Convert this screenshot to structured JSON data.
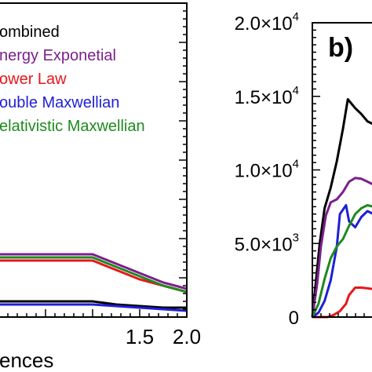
{
  "chart_data": [
    {
      "type": "line",
      "panel_label": "",
      "xlabel": "ences",
      "xlim": [
        0.0,
        2.0
      ],
      "x_ticks": [
        {
          "value": 1.5,
          "label": "1.5"
        },
        {
          "value": 2.0,
          "label": "2.0"
        }
      ],
      "legend": {
        "placement": "top-left",
        "entries": [
          {
            "name": "ombined",
            "color": "#000000"
          },
          {
            "name": "nergy Exponetial",
            "color": "#7b1f8c"
          },
          {
            "name": "ower Law",
            "color": "#e8161c"
          },
          {
            "name": "ouble Maxwellian",
            "color": "#1f1fd6"
          },
          {
            "name": "elativistic Maxwellian",
            "color": "#1e8a1e"
          }
        ]
      },
      "series": [
        {
          "color": "#000000",
          "x": [
            1.0,
            1.25,
            1.5,
            1.75,
            2.0
          ],
          "y": [
            0.05,
            0.04,
            0.035,
            0.03,
            0.03
          ]
        },
        {
          "color": "#7b1f8c",
          "x": [
            1.0,
            1.25,
            1.5,
            1.75,
            2.0
          ],
          "y": [
            0.2,
            0.17,
            0.14,
            0.11,
            0.09
          ]
        },
        {
          "color": "#e8161c",
          "x": [
            1.0,
            1.25,
            1.5,
            1.75,
            2.0
          ],
          "y": [
            0.18,
            0.15,
            0.12,
            0.1,
            0.08
          ]
        },
        {
          "color": "#1f1fd6",
          "x": [
            1.0,
            1.25,
            1.5,
            1.75,
            2.0
          ],
          "y": [
            0.04,
            0.035,
            0.03,
            0.025,
            0.02
          ]
        },
        {
          "color": "#1e8a1e",
          "x": [
            1.0,
            1.25,
            1.5,
            1.75,
            2.0
          ],
          "y": [
            0.19,
            0.16,
            0.13,
            0.1,
            0.08
          ]
        }
      ]
    },
    {
      "type": "line",
      "panel_label": "b)",
      "ylim": [
        0,
        20000
      ],
      "y_ticks": [
        {
          "value": 0,
          "mant": "0",
          "exp": ""
        },
        {
          "value": 5000,
          "mant": "5.0×10",
          "exp": "3"
        },
        {
          "value": 10000,
          "mant": "1.0×10",
          "exp": "4"
        },
        {
          "value": 15000,
          "mant": "1.5×10",
          "exp": "4"
        },
        {
          "value": 20000,
          "mant": "2.0×10",
          "exp": "4"
        }
      ],
      "xlim": [
        0,
        1
      ],
      "series": [
        {
          "color": "#000000",
          "x": [
            0.0,
            0.06,
            0.12,
            0.2,
            0.3,
            0.4,
            0.5,
            0.58,
            0.7,
            0.8,
            0.9,
            1.0
          ],
          "y": [
            0,
            2500,
            5000,
            7400,
            8800,
            10600,
            12800,
            14800,
            14200,
            13800,
            13300,
            13100
          ]
        },
        {
          "color": "#7b1f8c",
          "x": [
            0.0,
            0.08,
            0.14,
            0.22,
            0.3,
            0.4,
            0.5,
            0.6,
            0.7,
            0.8,
            0.9,
            1.0
          ],
          "y": [
            0,
            2300,
            4800,
            6900,
            7800,
            8000,
            8500,
            9200,
            9450,
            9400,
            9200,
            9000
          ]
        },
        {
          "color": "#e8161c",
          "x": [
            0.0,
            0.25,
            0.35,
            0.45,
            0.55,
            0.6,
            0.7,
            0.8,
            0.9,
            1.0
          ],
          "y": [
            0,
            0,
            150,
            400,
            900,
            1500,
            2000,
            2000,
            1950,
            1900
          ]
        },
        {
          "color": "#1f1fd6",
          "x": [
            0.0,
            0.1,
            0.2,
            0.3,
            0.4,
            0.45,
            0.55,
            0.6,
            0.7,
            0.8,
            0.9,
            1.0
          ],
          "y": [
            0,
            300,
            1100,
            2500,
            4800,
            7000,
            7600,
            6500,
            6100,
            6800,
            7200,
            7000
          ]
        },
        {
          "color": "#1e8a1e",
          "x": [
            0.0,
            0.1,
            0.2,
            0.3,
            0.4,
            0.5,
            0.6,
            0.7,
            0.8,
            0.9,
            1.0
          ],
          "y": [
            0,
            900,
            2600,
            4000,
            4800,
            5300,
            6200,
            7000,
            7400,
            7600,
            7500
          ]
        }
      ]
    }
  ]
}
